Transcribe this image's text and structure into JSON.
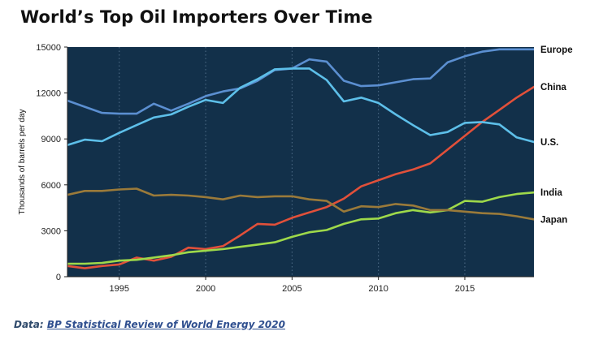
{
  "chart_data": {
    "type": "line",
    "title": "World’s Top Oil Importers Over Time",
    "xlabel": "",
    "ylabel": "Thousands of barrels per day",
    "xlim": [
      1992,
      2019
    ],
    "ylim": [
      0,
      15000
    ],
    "x_ticks": [
      1995,
      2000,
      2005,
      2010,
      2015
    ],
    "y_ticks": [
      0,
      3000,
      6000,
      9000,
      12000,
      15000
    ],
    "y_tick_labels": [
      "0",
      "3000",
      "6000",
      "9000",
      "12000",
      "15000"
    ],
    "grid": "vertical dotted",
    "legend": "direct labels at right",
    "background": "#12304a",
    "x": [
      1992,
      1993,
      1994,
      1995,
      1996,
      1997,
      1998,
      1999,
      2000,
      2001,
      2002,
      2003,
      2004,
      2005,
      2006,
      2007,
      2008,
      2009,
      2010,
      2011,
      2012,
      2013,
      2014,
      2015,
      2016,
      2017,
      2018,
      2019
    ],
    "series": [
      {
        "name": "Europe",
        "color": "#5b8fd1",
        "values": [
          11500,
          11100,
          10700,
          10650,
          10650,
          11300,
          10850,
          11300,
          11800,
          12100,
          12300,
          12800,
          13500,
          13600,
          14200,
          14050,
          12800,
          12450,
          12500,
          12700,
          12900,
          12950,
          14000,
          14400,
          14700,
          14850,
          14850,
          14850
        ]
      },
      {
        "name": "China",
        "color": "#e1503a",
        "values": [
          700,
          550,
          700,
          800,
          1250,
          1050,
          1300,
          1900,
          1800,
          2000,
          2700,
          3450,
          3400,
          3850,
          4200,
          4550,
          5100,
          5900,
          6300,
          6700,
          7000,
          7400,
          8300,
          9200,
          10100,
          10900,
          11700,
          12400
        ]
      },
      {
        "name": "U.S.",
        "color": "#5dbfe9",
        "values": [
          8600,
          8950,
          8850,
          9400,
          9900,
          10400,
          10600,
          11100,
          11550,
          11350,
          12350,
          12900,
          13550,
          13600,
          13600,
          12850,
          11450,
          11700,
          11350,
          10600,
          9900,
          9250,
          9450,
          10050,
          10100,
          9950,
          9100,
          8800
        ]
      },
      {
        "name": "India",
        "color": "#9ed94a",
        "values": [
          850,
          850,
          900,
          1050,
          1100,
          1250,
          1400,
          1600,
          1700,
          1800,
          1950,
          2100,
          2250,
          2600,
          2900,
          3050,
          3450,
          3750,
          3800,
          4150,
          4350,
          4200,
          4350,
          4950,
          4900,
          5200,
          5400,
          5500
        ]
      },
      {
        "name": "Japan",
        "color": "#9a7a3a",
        "values": [
          5350,
          5600,
          5600,
          5700,
          5750,
          5300,
          5350,
          5300,
          5200,
          5050,
          5300,
          5200,
          5250,
          5250,
          5050,
          4950,
          4250,
          4600,
          4550,
          4750,
          4650,
          4350,
          4350,
          4250,
          4150,
          4100,
          3950,
          3750
        ]
      }
    ]
  },
  "source": {
    "prefix": "Data: ",
    "link_text": "BP Statistical Review of World Energy 2020"
  }
}
